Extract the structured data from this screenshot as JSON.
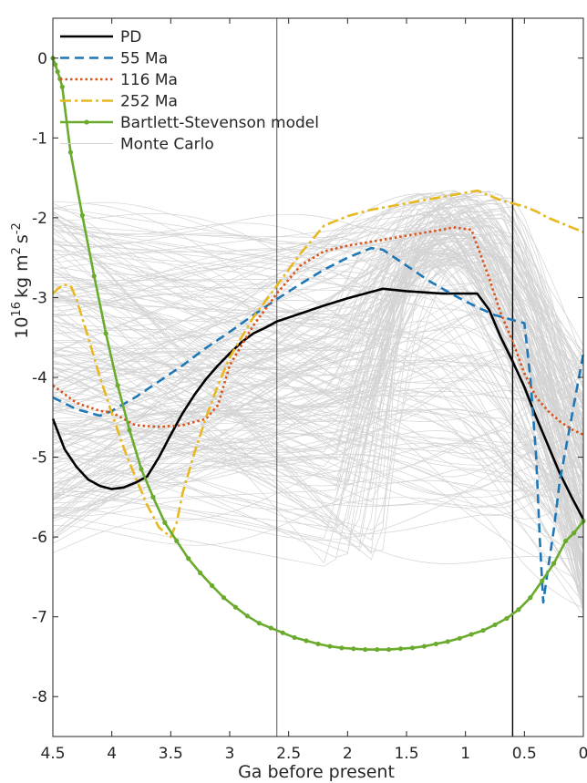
{
  "chart_data": {
    "type": "line",
    "title": "",
    "xlabel": "Ga before present",
    "ylabel_base": "10",
    "ylabel_exp": "16",
    "ylabel_units": "kg m",
    "ylabel_units_exp": "2",
    "ylabel_s": "s",
    "ylabel_s_exp": "-2",
    "xlim": [
      0,
      4.5
    ],
    "x_reversed": true,
    "ylim": [
      -8.5,
      0.5
    ],
    "grid": false,
    "xticks": [
      4.5,
      4,
      3.5,
      3,
      2.5,
      2,
      1.5,
      1,
      0.5,
      0
    ],
    "xtick_labels": [
      "4.5",
      "4",
      "3.5",
      "3",
      "2.5",
      "2",
      "1.5",
      "1",
      "0.5",
      "0"
    ],
    "yticks": [
      0,
      -1,
      -2,
      -3,
      -4,
      -5,
      -6,
      -7,
      -8
    ],
    "ytick_labels": [
      "0",
      "-1",
      "-2",
      "-3",
      "-4",
      "-5",
      "-6",
      "-7",
      "-8"
    ],
    "vlines": [
      {
        "x": 2.6,
        "color": "#555555",
        "width": 1
      },
      {
        "x": 0.6,
        "color": "#000000",
        "width": 1.4
      }
    ],
    "legend_position": "top-left",
    "series": [
      {
        "name": "PD",
        "color": "#000000",
        "dash": "solid",
        "width": 2.6,
        "x": [
          4.5,
          4.4,
          4.3,
          4.2,
          4.1,
          4.0,
          3.9,
          3.8,
          3.7,
          3.6,
          3.5,
          3.4,
          3.3,
          3.2,
          3.1,
          3.0,
          2.9,
          2.8,
          2.7,
          2.6,
          2.4,
          2.2,
          2.0,
          1.8,
          1.7,
          1.5,
          1.2,
          0.9,
          0.8,
          0.7,
          0.6,
          0.5,
          0.4,
          0.3,
          0.2,
          0.1,
          0.0
        ],
        "y": [
          -4.52,
          -4.9,
          -5.12,
          -5.28,
          -5.36,
          -5.4,
          -5.38,
          -5.32,
          -5.24,
          -5.0,
          -4.72,
          -4.45,
          -4.22,
          -4.02,
          -3.85,
          -3.7,
          -3.56,
          -3.45,
          -3.38,
          -3.3,
          -3.2,
          -3.1,
          -3.01,
          -2.93,
          -2.89,
          -2.92,
          -2.95,
          -2.95,
          -3.15,
          -3.5,
          -3.8,
          -4.12,
          -4.5,
          -4.85,
          -5.2,
          -5.5,
          -5.78
        ]
      },
      {
        "name": "55 Ma",
        "color": "#1f77b4",
        "dash": "dash",
        "width": 2.6,
        "x": [
          4.5,
          4.3,
          4.1,
          4.0,
          3.8,
          3.6,
          3.4,
          3.2,
          3.0,
          2.8,
          2.6,
          2.4,
          2.2,
          2.0,
          1.8,
          1.7,
          1.5,
          1.3,
          1.1,
          0.9,
          0.75,
          0.6,
          0.5,
          0.45,
          0.4,
          0.37,
          0.34,
          0.3,
          0.25,
          0.2,
          0.1,
          0.0
        ],
        "y": [
          -4.25,
          -4.4,
          -4.48,
          -4.42,
          -4.25,
          -4.05,
          -3.85,
          -3.63,
          -3.43,
          -3.22,
          -3.02,
          -2.83,
          -2.65,
          -2.5,
          -2.38,
          -2.4,
          -2.6,
          -2.8,
          -2.97,
          -3.12,
          -3.22,
          -3.28,
          -3.32,
          -4.0,
          -5.0,
          -6.0,
          -6.82,
          -6.4,
          -5.9,
          -5.3,
          -4.5,
          -3.7
        ]
      },
      {
        "name": "116 Ma",
        "color": "#d9541a",
        "dash": "dot",
        "width": 2.6,
        "x": [
          4.5,
          4.3,
          4.1,
          4.0,
          3.9,
          3.8,
          3.6,
          3.4,
          3.2,
          3.1,
          3.0,
          2.8,
          2.6,
          2.4,
          2.2,
          2.0,
          1.8,
          1.6,
          1.4,
          1.2,
          1.1,
          0.95,
          0.9,
          0.8,
          0.7,
          0.6,
          0.5,
          0.4,
          0.3,
          0.2,
          0.1,
          0.0
        ],
        "y": [
          -4.1,
          -4.32,
          -4.42,
          -4.44,
          -4.52,
          -4.6,
          -4.62,
          -4.6,
          -4.52,
          -4.35,
          -3.85,
          -3.35,
          -2.95,
          -2.6,
          -2.42,
          -2.35,
          -2.3,
          -2.25,
          -2.2,
          -2.15,
          -2.12,
          -2.15,
          -2.35,
          -2.75,
          -3.2,
          -3.55,
          -3.95,
          -4.25,
          -4.42,
          -4.55,
          -4.65,
          -4.72
        ]
      },
      {
        "name": "252 Ma",
        "color": "#e8b820",
        "dash": "dashdot",
        "width": 2.6,
        "x": [
          4.5,
          4.45,
          4.4,
          4.35,
          4.3,
          4.2,
          4.1,
          4.0,
          3.9,
          3.8,
          3.7,
          3.6,
          3.5,
          3.45,
          3.4,
          3.3,
          3.2,
          3.1,
          3.0,
          2.9,
          2.8,
          2.7,
          2.6,
          2.4,
          2.2,
          2.0,
          1.8,
          1.5,
          1.2,
          0.9,
          0.8,
          0.7,
          0.6,
          0.5,
          0.4,
          0.3,
          0.2,
          0.1,
          0.0
        ],
        "y": [
          -2.95,
          -2.88,
          -2.84,
          -2.85,
          -3.02,
          -3.5,
          -4.0,
          -4.45,
          -4.88,
          -5.25,
          -5.6,
          -5.88,
          -6.0,
          -5.82,
          -5.45,
          -4.95,
          -4.5,
          -4.1,
          -3.75,
          -3.5,
          -3.25,
          -3.05,
          -2.85,
          -2.45,
          -2.1,
          -1.98,
          -1.9,
          -1.82,
          -1.74,
          -1.66,
          -1.72,
          -1.78,
          -1.82,
          -1.86,
          -1.92,
          -2.0,
          -2.06,
          -2.12,
          -2.18
        ]
      },
      {
        "name": "Bartlett-Stevenson model",
        "color": "#6aab2e",
        "dash": "solid",
        "width": 2.6,
        "marker": true,
        "x": [
          4.5,
          4.48,
          4.46,
          4.44,
          4.42,
          4.35,
          4.25,
          4.15,
          4.05,
          3.95,
          3.85,
          3.75,
          3.65,
          3.55,
          3.45,
          3.35,
          3.25,
          3.15,
          3.05,
          2.95,
          2.85,
          2.75,
          2.65,
          2.55,
          2.45,
          2.35,
          2.25,
          2.15,
          2.05,
          1.95,
          1.85,
          1.75,
          1.65,
          1.55,
          1.45,
          1.35,
          1.25,
          1.15,
          1.05,
          0.95,
          0.85,
          0.75,
          0.65,
          0.55,
          0.45,
          0.35,
          0.25,
          0.15,
          0.08,
          0.0
        ],
        "y": [
          0.0,
          -0.08,
          -0.17,
          -0.26,
          -0.36,
          -1.18,
          -1.97,
          -2.73,
          -3.45,
          -4.1,
          -4.66,
          -5.15,
          -5.5,
          -5.82,
          -6.05,
          -6.27,
          -6.45,
          -6.61,
          -6.76,
          -6.88,
          -6.99,
          -7.08,
          -7.14,
          -7.2,
          -7.26,
          -7.3,
          -7.34,
          -7.37,
          -7.39,
          -7.4,
          -7.41,
          -7.41,
          -7.41,
          -7.4,
          -7.39,
          -7.37,
          -7.34,
          -7.31,
          -7.27,
          -7.22,
          -7.17,
          -7.1,
          -7.02,
          -6.91,
          -6.76,
          -6.55,
          -6.33,
          -6.05,
          -5.95,
          -5.8
        ]
      }
    ],
    "montecarlo": {
      "name": "Monte Carlo",
      "color": "#d3d3d3",
      "count": 220
    }
  }
}
